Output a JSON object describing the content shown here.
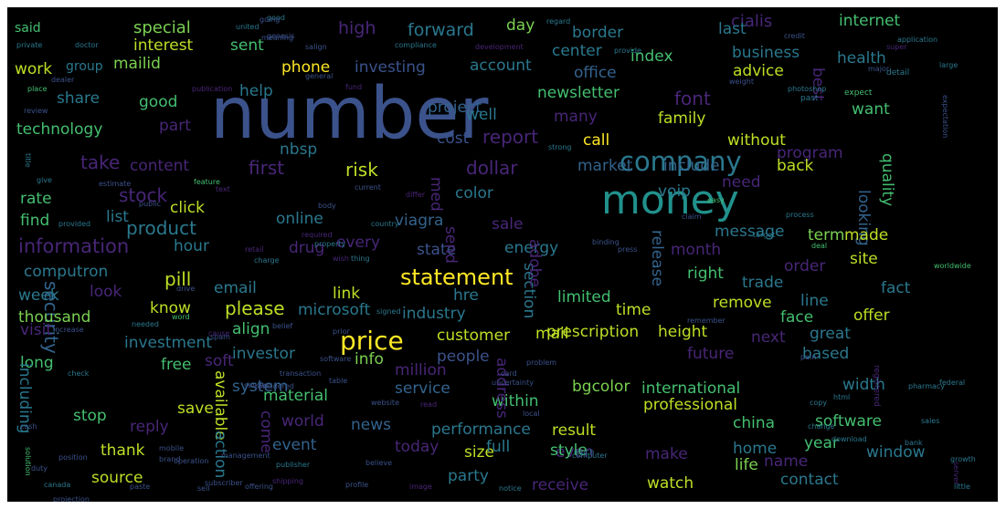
{
  "word_cloud": {
    "palette": {
      "purple": "#482677",
      "indigo": "#433e85",
      "blue": "#3b528b",
      "steel": "#33638d",
      "teal": "#2a788e",
      "cyan": "#21918c",
      "green": "#22a884",
      "lime": "#44bf70",
      "yellowgreen": "#7ad151",
      "yellow": "#bddf26",
      "gold": "#fde725",
      "dim": "#3e4a89"
    },
    "words": [
      {
        "text": "number",
        "color": "#3b528b"
      },
      {
        "text": "money",
        "color": "#21918c"
      },
      {
        "text": "company",
        "color": "#2a788e"
      },
      {
        "text": "price",
        "color": "#fde725"
      },
      {
        "text": "statement",
        "color": "#fde725"
      },
      {
        "text": "information",
        "color": "#482677"
      },
      {
        "text": "stock",
        "color": "#482677"
      },
      {
        "text": "special",
        "color": "#7ad151"
      },
      {
        "text": "high",
        "color": "#482677"
      },
      {
        "text": "forward",
        "color": "#2a788e"
      },
      {
        "text": "interest",
        "color": "#bddf26"
      },
      {
        "text": "border",
        "color": "#2a788e"
      },
      {
        "text": "internet",
        "color": "#44bf70"
      },
      {
        "text": "business",
        "color": "#2a788e"
      },
      {
        "text": "cialis",
        "color": "#482677"
      },
      {
        "text": "mailid",
        "color": "#7ad151"
      },
      {
        "text": "phone",
        "color": "#fde725"
      },
      {
        "text": "investing",
        "color": "#3b528b"
      },
      {
        "text": "account",
        "color": "#2a788e"
      },
      {
        "text": "office",
        "color": "#33638d"
      },
      {
        "text": "advice",
        "color": "#bddf26"
      },
      {
        "text": "health",
        "color": "#2a788e"
      },
      {
        "text": "newsletter",
        "color": "#44bf70"
      },
      {
        "text": "technology",
        "color": "#44bf70"
      },
      {
        "text": "font",
        "color": "#482677"
      },
      {
        "text": "project",
        "color": "#33638d"
      },
      {
        "text": "family",
        "color": "#bddf26"
      },
      {
        "text": "report",
        "color": "#482677"
      },
      {
        "text": "call",
        "color": "#fde725"
      },
      {
        "text": "dollar",
        "color": "#482677"
      },
      {
        "text": "market",
        "color": "#33638d"
      },
      {
        "text": "include",
        "color": "#33638d"
      },
      {
        "text": "nbsp",
        "color": "#2a788e"
      },
      {
        "text": "first",
        "color": "#482677"
      },
      {
        "text": "risk",
        "color": "#bddf26"
      },
      {
        "text": "cost",
        "color": "#3b528b"
      },
      {
        "text": "take",
        "color": "#482677"
      },
      {
        "text": "content",
        "color": "#482677"
      },
      {
        "text": "click",
        "color": "#bddf26"
      },
      {
        "text": "online",
        "color": "#2a788e"
      },
      {
        "text": "viagra",
        "color": "#33638d"
      },
      {
        "text": "sale",
        "color": "#482677"
      },
      {
        "text": "product",
        "color": "#2a788e"
      },
      {
        "text": "drug",
        "color": "#482677"
      },
      {
        "text": "energy",
        "color": "#2a788e"
      },
      {
        "text": "state",
        "color": "#3b528b"
      },
      {
        "text": "computron",
        "color": "#2a788e"
      },
      {
        "text": "pill",
        "color": "#bddf26"
      },
      {
        "text": "email",
        "color": "#2a788e"
      },
      {
        "text": "please",
        "color": "#bddf26"
      },
      {
        "text": "link",
        "color": "#bddf26"
      },
      {
        "text": "microsoft",
        "color": "#2a788e"
      },
      {
        "text": "security",
        "color": "#33638d"
      },
      {
        "text": "align",
        "color": "#44bf70"
      },
      {
        "text": "investment",
        "color": "#2a788e"
      },
      {
        "text": "investor",
        "color": "#2a788e"
      },
      {
        "text": "info",
        "color": "#7ad151"
      },
      {
        "text": "customer",
        "color": "#bddf26"
      },
      {
        "text": "people",
        "color": "#3b528b"
      },
      {
        "text": "million",
        "color": "#482677"
      },
      {
        "text": "prescription",
        "color": "#bddf26"
      },
      {
        "text": "height",
        "color": "#bddf26"
      },
      {
        "text": "future",
        "color": "#482677"
      },
      {
        "text": "based",
        "color": "#2a788e"
      },
      {
        "text": "international",
        "color": "#44bf70"
      },
      {
        "text": "professional",
        "color": "#bddf26"
      },
      {
        "text": "system",
        "color": "#33638d"
      },
      {
        "text": "service",
        "color": "#33638d"
      },
      {
        "text": "within",
        "color": "#44bf70"
      },
      {
        "text": "bgcolor",
        "color": "#7ad151"
      },
      {
        "text": "performance",
        "color": "#2a788e"
      },
      {
        "text": "result",
        "color": "#bddf26"
      },
      {
        "text": "software",
        "color": "#44bf70"
      },
      {
        "text": "width",
        "color": "#2a788e"
      },
      {
        "text": "china",
        "color": "#44bf70"
      },
      {
        "text": "world",
        "color": "#482677"
      },
      {
        "text": "news",
        "color": "#33638d"
      },
      {
        "text": "reply",
        "color": "#482677"
      },
      {
        "text": "thank",
        "color": "#bddf26"
      },
      {
        "text": "source",
        "color": "#bddf26"
      },
      {
        "text": "event",
        "color": "#33638d"
      },
      {
        "text": "today",
        "color": "#482677"
      },
      {
        "text": "size",
        "color": "#bddf26"
      },
      {
        "text": "even",
        "color": "#482677"
      },
      {
        "text": "full",
        "color": "#2a788e"
      },
      {
        "text": "style",
        "color": "#44bf70"
      },
      {
        "text": "make",
        "color": "#482677"
      },
      {
        "text": "receive",
        "color": "#482677"
      },
      {
        "text": "watch",
        "color": "#bddf26"
      },
      {
        "text": "contact",
        "color": "#2a788e"
      },
      {
        "text": "window",
        "color": "#2a788e"
      },
      {
        "text": "home",
        "color": "#2a788e"
      },
      {
        "text": "year",
        "color": "#44bf70"
      },
      {
        "text": "name",
        "color": "#482677"
      },
      {
        "text": "life",
        "color": "#7ad151"
      },
      {
        "text": "hour",
        "color": "#2a788e"
      },
      {
        "text": "rate",
        "color": "#44bf70"
      },
      {
        "text": "find",
        "color": "#44bf70"
      },
      {
        "text": "list",
        "color": "#2a788e"
      },
      {
        "text": "week",
        "color": "#2a788e"
      },
      {
        "text": "look",
        "color": "#482677"
      },
      {
        "text": "thousand",
        "color": "#7ad151"
      },
      {
        "text": "visit",
        "color": "#482677"
      },
      {
        "text": "long",
        "color": "#44bf70"
      },
      {
        "text": "free",
        "color": "#44bf70"
      },
      {
        "text": "soft",
        "color": "#482677"
      },
      {
        "text": "stop",
        "color": "#44bf70"
      },
      {
        "text": "save",
        "color": "#bddf26"
      },
      {
        "text": "material",
        "color": "#44bf70"
      },
      {
        "text": "said",
        "color": "#44bf70"
      },
      {
        "text": "work",
        "color": "#bddf26"
      },
      {
        "text": "good",
        "color": "#44bf70"
      },
      {
        "text": "share",
        "color": "#2a788e"
      },
      {
        "text": "help",
        "color": "#2a788e"
      },
      {
        "text": "sent",
        "color": "#44bf70"
      },
      {
        "text": "center",
        "color": "#2a788e"
      },
      {
        "text": "index",
        "color": "#44bf70"
      },
      {
        "text": "well",
        "color": "#2a788e"
      },
      {
        "text": "part",
        "color": "#482677"
      },
      {
        "text": "many",
        "color": "#482677"
      },
      {
        "text": "want",
        "color": "#44bf70"
      },
      {
        "text": "without",
        "color": "#bddf26"
      },
      {
        "text": "program",
        "color": "#482677"
      },
      {
        "text": "need",
        "color": "#482677"
      },
      {
        "text": "back",
        "color": "#bddf26"
      },
      {
        "text": "quality",
        "color": "#44bf70"
      },
      {
        "text": "looking",
        "color": "#33638d"
      },
      {
        "text": "made",
        "color": "#bddf26"
      },
      {
        "text": "term",
        "color": "#7ad151"
      },
      {
        "text": "message",
        "color": "#2a788e"
      },
      {
        "text": "month",
        "color": "#482677"
      },
      {
        "text": "order",
        "color": "#482677"
      },
      {
        "text": "site",
        "color": "#bddf26"
      },
      {
        "text": "right",
        "color": "#44bf70"
      },
      {
        "text": "release",
        "color": "#33638d"
      },
      {
        "text": "trade",
        "color": "#2a788e"
      },
      {
        "text": "remove",
        "color": "#bddf26"
      },
      {
        "text": "face",
        "color": "#44bf70"
      },
      {
        "text": "offer",
        "color": "#bddf26"
      },
      {
        "text": "line",
        "color": "#2a788e"
      },
      {
        "text": "fact",
        "color": "#2a788e"
      },
      {
        "text": "limited",
        "color": "#44bf70"
      },
      {
        "text": "time",
        "color": "#bddf26"
      },
      {
        "text": "next",
        "color": "#482677"
      },
      {
        "text": "great",
        "color": "#2a788e"
      },
      {
        "text": "hre",
        "color": "#2a788e"
      },
      {
        "text": "industry",
        "color": "#2a788e"
      },
      {
        "text": "mail",
        "color": "#bddf26"
      },
      {
        "text": "know",
        "color": "#bddf26"
      },
      {
        "text": "send",
        "color": "#482677"
      },
      {
        "text": "section",
        "color": "#2a788e"
      },
      {
        "text": "adobe",
        "color": "#482677"
      },
      {
        "text": "every",
        "color": "#482677"
      },
      {
        "text": "voip",
        "color": "#2a788e"
      },
      {
        "text": "med",
        "color": "#482677"
      },
      {
        "text": "color",
        "color": "#2a788e"
      },
      {
        "text": "best",
        "color": "#482677"
      },
      {
        "text": "detail",
        "color": "#2a788e"
      },
      {
        "text": "last",
        "color": "#2a788e"
      },
      {
        "text": "day",
        "color": "#7ad151"
      },
      {
        "text": "expect",
        "color": "#44bf70"
      },
      {
        "text": "past",
        "color": "#2a788e"
      },
      {
        "text": "group",
        "color": "#2a788e"
      },
      {
        "text": "address",
        "color": "#482677"
      },
      {
        "text": "available",
        "color": "#bddf26"
      },
      {
        "text": "come",
        "color": "#482677"
      },
      {
        "text": "action",
        "color": "#2a788e"
      },
      {
        "text": "party",
        "color": "#2a788e"
      },
      {
        "text": "including",
        "color": "#2a788e"
      },
      {
        "text": "much",
        "color": "#2a788e"
      },
      {
        "text": "registered",
        "color": "#482677"
      },
      {
        "text": "read",
        "color": "#482677"
      },
      {
        "text": "easy",
        "color": "#44bf70"
      },
      {
        "text": "country",
        "color": "#2a788e"
      },
      {
        "text": "provided",
        "color": "#2a788e"
      },
      {
        "text": "property",
        "color": "#2a788e"
      },
      {
        "text": "provide",
        "color": "#2a788e"
      },
      {
        "text": "doctor",
        "color": "#2a788e"
      },
      {
        "text": "compliance",
        "color": "#2a788e"
      },
      {
        "text": "development",
        "color": "#482677"
      },
      {
        "text": "regard",
        "color": "#2a788e"
      },
      {
        "text": "mobile",
        "color": "#3b528b"
      },
      {
        "text": "brand",
        "color": "#3b528b"
      },
      {
        "text": "strong",
        "color": "#2a788e"
      },
      {
        "text": "publisher",
        "color": "#2a788e"
      },
      {
        "text": "shipping",
        "color": "#482677"
      },
      {
        "text": "image",
        "color": "#482677"
      },
      {
        "text": "notice",
        "color": "#2a788e"
      },
      {
        "text": "computer",
        "color": "#2a788e"
      },
      {
        "text": "believe",
        "color": "#3b528b"
      },
      {
        "text": "canada",
        "color": "#2a788e"
      },
      {
        "text": "solution",
        "color": "#44bf70"
      },
      {
        "text": "check",
        "color": "#2a788e"
      },
      {
        "text": "title",
        "color": "#2a788e"
      },
      {
        "text": "give",
        "color": "#2a788e"
      },
      {
        "text": "place",
        "color": "#44bf70"
      },
      {
        "text": "private",
        "color": "#2a788e"
      },
      {
        "text": "fund",
        "color": "#482677"
      },
      {
        "text": "publication",
        "color": "#482677"
      },
      {
        "text": "feature",
        "color": "#44bf70"
      },
      {
        "text": "text",
        "color": "#482677"
      },
      {
        "text": "required",
        "color": "#482677"
      },
      {
        "text": "differ",
        "color": "#482677"
      },
      {
        "text": "current",
        "color": "#3b528b"
      },
      {
        "text": "belief",
        "color": "#3b528b"
      },
      {
        "text": "cause",
        "color": "#482677"
      },
      {
        "text": "word",
        "color": "#44bf70"
      },
      {
        "text": "needed",
        "color": "#2a788e"
      },
      {
        "text": "increase",
        "color": "#3b528b"
      },
      {
        "text": "retail",
        "color": "#482677"
      },
      {
        "text": "charge",
        "color": "#2a788e"
      },
      {
        "text": "thing",
        "color": "#2a788e"
      },
      {
        "text": "wish",
        "color": "#482677"
      },
      {
        "text": "claim",
        "color": "#3b528b"
      },
      {
        "text": "target",
        "color": "#2a788e"
      },
      {
        "text": "process",
        "color": "#2a788e"
      },
      {
        "text": "deal",
        "color": "#44bf70"
      },
      {
        "text": "worldwide",
        "color": "#44bf70"
      },
      {
        "text": "html",
        "color": "#2a788e"
      },
      {
        "text": "download",
        "color": "#2a788e"
      },
      {
        "text": "copy",
        "color": "#2a788e"
      },
      {
        "text": "change",
        "color": "#2a788e"
      },
      {
        "text": "pharmacy",
        "color": "#2a788e"
      },
      {
        "text": "bank",
        "color": "#2a788e"
      },
      {
        "text": "sales",
        "color": "#2a788e"
      },
      {
        "text": "federal",
        "color": "#2a788e"
      },
      {
        "text": "growth",
        "color": "#2a788e"
      },
      {
        "text": "server",
        "color": "#482677"
      },
      {
        "text": "little",
        "color": "#2a788e"
      },
      {
        "text": "signed",
        "color": "#2a788e"
      },
      {
        "text": "pain",
        "color": "#3b528b"
      },
      {
        "text": "weight",
        "color": "#3b528b"
      },
      {
        "text": "photoshop",
        "color": "#2a788e"
      },
      {
        "text": "expectation",
        "color": "#3b528b"
      },
      {
        "text": "application",
        "color": "#2a788e"
      },
      {
        "text": "credit",
        "color": "#3b528b"
      },
      {
        "text": "major",
        "color": "#3b528b"
      },
      {
        "text": "large",
        "color": "#2a788e"
      },
      {
        "text": "super",
        "color": "#482677"
      },
      {
        "text": "good",
        "color": "#2a788e"
      },
      {
        "text": "going",
        "color": "#3b528b"
      },
      {
        "text": "united",
        "color": "#2a788e"
      },
      {
        "text": "salign",
        "color": "#3b528b"
      },
      {
        "text": "meaning",
        "color": "#3b528b"
      },
      {
        "text": "genesis",
        "color": "#3b528b"
      },
      {
        "text": "dealer",
        "color": "#3b528b"
      },
      {
        "text": "general",
        "color": "#3b528b"
      },
      {
        "text": "review",
        "color": "#3b528b"
      },
      {
        "text": "estimate",
        "color": "#3b528b"
      },
      {
        "text": "public",
        "color": "#3b528b"
      },
      {
        "text": "body",
        "color": "#3b528b"
      },
      {
        "text": "position",
        "color": "#3b528b"
      },
      {
        "text": "table",
        "color": "#3b528b"
      },
      {
        "text": "software",
        "color": "#3b528b"
      },
      {
        "text": "prior",
        "color": "#3b528b"
      },
      {
        "text": "transaction",
        "color": "#3b528b"
      },
      {
        "text": "website",
        "color": "#3b528b"
      },
      {
        "text": "local",
        "color": "#3b528b"
      },
      {
        "text": "profile",
        "color": "#3b528b"
      },
      {
        "text": "offering",
        "color": "#3b528b"
      },
      {
        "text": "sell",
        "color": "#3b528b"
      },
      {
        "text": "paste",
        "color": "#3b528b"
      },
      {
        "text": "projection",
        "color": "#3b528b"
      },
      {
        "text": "cash",
        "color": "#3b528b"
      },
      {
        "text": "duty",
        "color": "#3b528b"
      },
      {
        "text": "operation",
        "color": "#3b528b"
      },
      {
        "text": "subscriber",
        "color": "#3b528b"
      },
      {
        "text": "management",
        "color": "#3b528b"
      },
      {
        "text": "considered",
        "color": "#3b528b"
      },
      {
        "text": "problem",
        "color": "#3b528b"
      },
      {
        "text": "card",
        "color": "#3b528b"
      },
      {
        "text": "uncertainty",
        "color": "#3b528b"
      },
      {
        "text": "remember",
        "color": "#3b528b"
      },
      {
        "text": "binding",
        "color": "#3b528b"
      },
      {
        "text": "press",
        "color": "#3b528b"
      },
      {
        "text": "drive",
        "color": "#3b528b"
      },
      {
        "text": "spam",
        "color": "#3b528b"
      },
      {
        "text": "sender",
        "color": "#3b528b"
      }
    ]
  }
}
